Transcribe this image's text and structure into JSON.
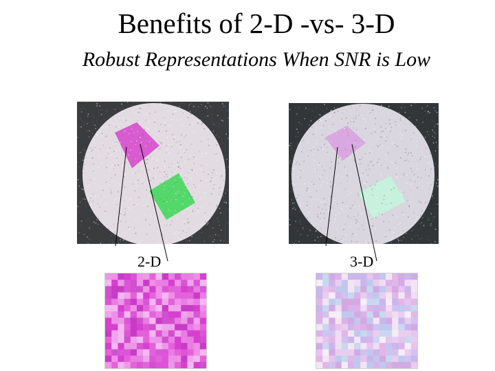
{
  "slide": {
    "title": "Benefits of 2-D -vs- 3-D",
    "subtitle": "Robust Representations When SNR is Low"
  },
  "panels": [
    {
      "label": "2-D",
      "palette": {
        "pink_patch": "#d85bd0",
        "green_patch": "#54d86a",
        "disc": "#e2dce2",
        "background": "#3a3c3e"
      },
      "mosaic_colors": [
        "#d63fd0",
        "#e462d9",
        "#ee8fe8",
        "#f4b8f0",
        "#c93bc6",
        "#db55d6",
        "#e87de3",
        "#f0a4ec",
        "#d24fcf",
        "#ec98e6"
      ]
    },
    {
      "label": "3-D",
      "palette": {
        "pink_patch": "#d9a8e0",
        "green_patch": "#c6f1dc",
        "disc": "#d9d6df",
        "background": "#323638"
      },
      "mosaic_colors": [
        "#d9b3ea",
        "#e6c4ee",
        "#c9b6ec",
        "#f0dcf4",
        "#d0c3f0",
        "#e2b6e6",
        "#bfc9ee",
        "#f3e6f2",
        "#d4a9e2",
        "#e9cdef",
        "#c7d8f0",
        "#f6eef6"
      ]
    }
  ]
}
